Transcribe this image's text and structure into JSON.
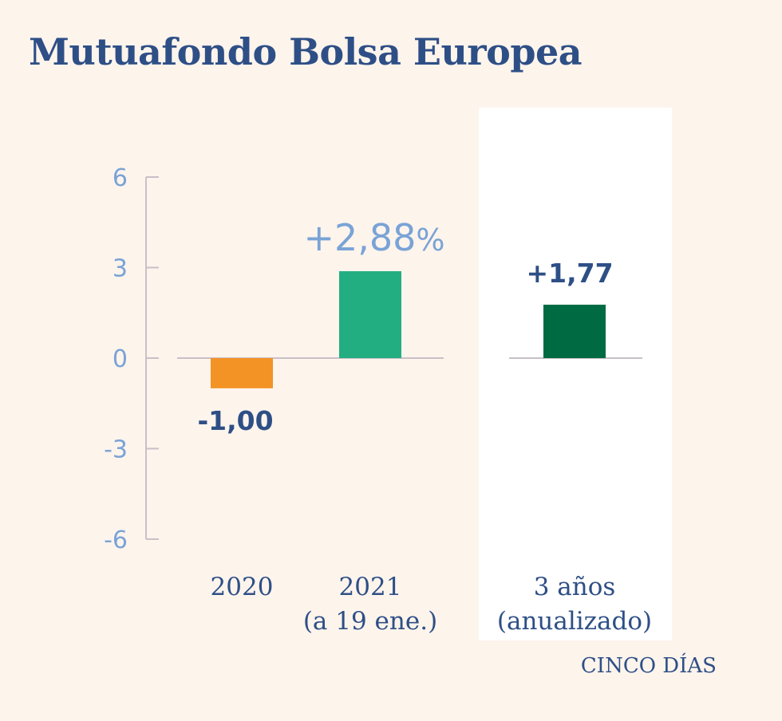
{
  "title": "Mutuafondo Bolsa Europea",
  "source": "CINCO DÍAS",
  "chart_data": {
    "type": "bar",
    "title": "Mutuafondo Bolsa Europea",
    "ylim": [
      -6,
      6
    ],
    "yticks": [
      6,
      3,
      0,
      -3,
      -6
    ],
    "ytick_labels": [
      "6",
      "3",
      "0",
      "-3",
      "-6"
    ],
    "categories": [
      {
        "line1": "2020",
        "line2": ""
      },
      {
        "line1": "2021",
        "line2": "(a 19 ene.)"
      },
      {
        "line1": "3 años",
        "line2": "(anualizado)"
      }
    ],
    "values": [
      -1.0,
      2.88,
      1.77
    ],
    "value_labels": [
      "-1,00",
      "+2,88%",
      "+1,77"
    ],
    "colors": [
      "#f39325",
      "#23ae82",
      "#006b42"
    ],
    "highlight_category": 2
  }
}
